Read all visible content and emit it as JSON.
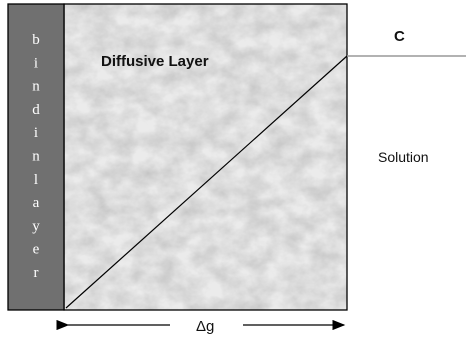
{
  "binding_layer": {
    "letters": [
      "b",
      "i",
      "n",
      "d",
      "i",
      "n",
      "l",
      "a",
      "y",
      "e",
      "r"
    ]
  },
  "diffusive_layer": {
    "title": "Diffusive Layer"
  },
  "solution": {
    "label": "Solution"
  },
  "concentration": {
    "label": "C"
  },
  "thickness": {
    "label": "Δg"
  },
  "colors": {
    "binding_layer_fill": "#707070",
    "diffusive_layer_base": "#e9e9e9",
    "outline": "#000000",
    "concentration_line": "#999999"
  }
}
